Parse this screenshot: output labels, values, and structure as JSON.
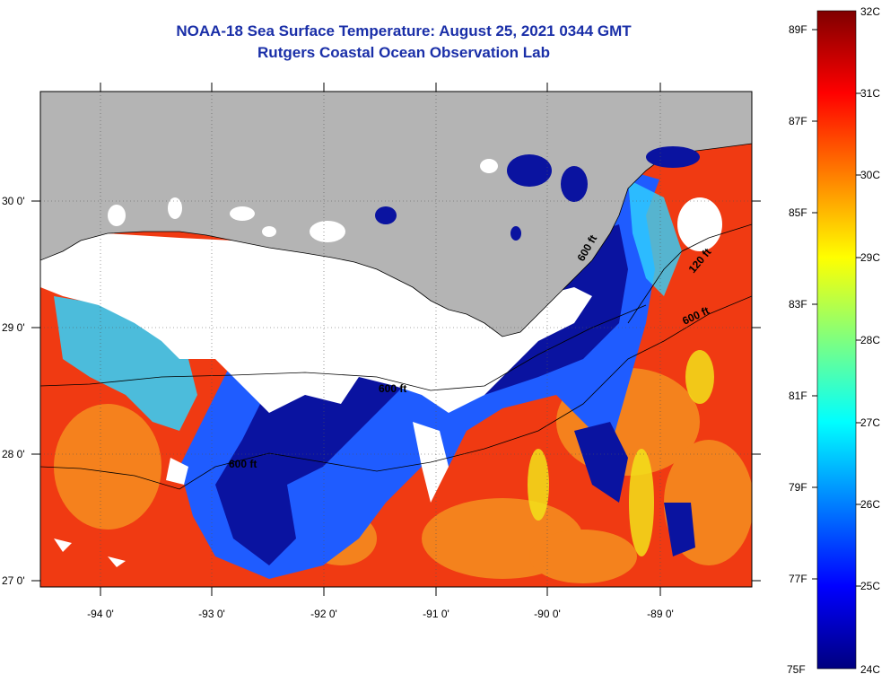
{
  "title_line1": "NOAA-18 Sea Surface Temperature:  August 25, 2021 0344 GMT",
  "title_line2": "Rutgers Coastal Ocean Observation Lab",
  "map": {
    "lon_labels": [
      "-94 0'",
      "-93 0'",
      "-92 0'",
      "-91 0'",
      "-90 0'",
      "-89 0'"
    ],
    "lat_labels": [
      "30 0'",
      "29 0'",
      "28 0'",
      "27 0'"
    ],
    "contour_labels": [
      "600 ft",
      "600 ft",
      "600 ft",
      "120 ft",
      "600 ft"
    ],
    "colors": {
      "land": "#b4b4b4",
      "cloud": "#ffffff",
      "frame": "#000000"
    }
  },
  "colorbar": {
    "fahrenheit_labels": [
      "89F",
      "87F",
      "85F",
      "83F",
      "81F",
      "79F",
      "77F",
      "75F"
    ],
    "celsius_labels": [
      "32C",
      "31C",
      "30C",
      "29C",
      "28C",
      "27C",
      "26C",
      "25C",
      "24C"
    ],
    "colors": [
      "#00007f",
      "#0000ff",
      "#007fff",
      "#00ffff",
      "#7fff7f",
      "#ffff00",
      "#ff7f00",
      "#ff0000",
      "#7f0000"
    ]
  }
}
